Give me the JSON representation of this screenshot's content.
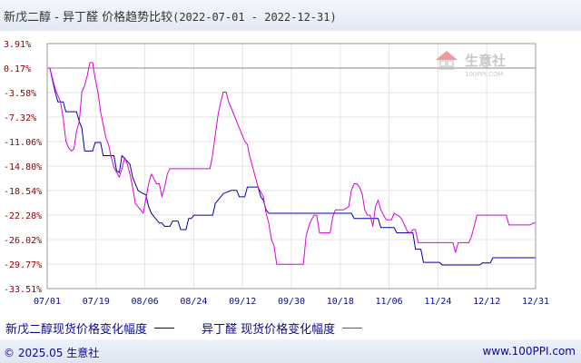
{
  "header": {
    "title": "新戊二醇 - 异丁醛  价格趋势比较",
    "range": "(2022-07-01 - 2022-12-31)"
  },
  "watermark": {
    "brand": "生意社",
    "url": "100PPI.COM",
    "icon": "house-logo-icon"
  },
  "footer": {
    "copyright": "© 2025.05 生意社",
    "site": "www.100PPI.com"
  },
  "colors": {
    "series_1": "#0000aa",
    "series_2": "#dd00dd",
    "baseline": "#888888",
    "tick_y": "#8a0000",
    "tick_x": "#0a0a8c"
  },
  "chart_data": {
    "type": "line",
    "xlabel": "",
    "ylabel": "",
    "yticks": [
      "3.91%",
      "0.17%",
      "-3.58%",
      "-7.32%",
      "-11.06%",
      "-14.80%",
      "-18.54%",
      "-22.28%",
      "-26.02%",
      "-29.77%",
      "-33.51%"
    ],
    "ylim": [
      -33.51,
      3.91
    ],
    "xticks": [
      "07/01",
      "07/19",
      "08/06",
      "08/24",
      "09/12",
      "09/30",
      "10/18",
      "11/06",
      "11/24",
      "12/12",
      "12/31"
    ],
    "xlim": [
      "07/01",
      "12/31"
    ],
    "grid": true,
    "legend_position": "bottom",
    "series": [
      {
        "name": "新戊二醇现货价格变化幅度",
        "color": "#0000aa",
        "points": [
          [
            "07/01",
            0.17
          ],
          [
            "07/02",
            0.17
          ],
          [
            "07/04",
            -3.5
          ],
          [
            "07/05",
            -5.0
          ],
          [
            "07/07",
            -5.0
          ],
          [
            "07/08",
            -6.5
          ],
          [
            "07/12",
            -6.5
          ],
          [
            "07/13",
            -8.0
          ],
          [
            "07/14",
            -9.0
          ],
          [
            "07/15",
            -12.5
          ],
          [
            "07/18",
            -12.5
          ],
          [
            "07/19",
            -11.2
          ],
          [
            "07/21",
            -11.2
          ],
          [
            "07/22",
            -13.2
          ],
          [
            "07/26",
            -13.2
          ],
          [
            "07/27",
            -15.5
          ],
          [
            "07/28",
            -15.8
          ],
          [
            "07/29",
            -13.2
          ],
          [
            "08/01",
            -14.5
          ],
          [
            "08/02",
            -16.5
          ],
          [
            "08/04",
            -18.5
          ],
          [
            "08/05",
            -18.8
          ],
          [
            "08/07",
            -19.2
          ],
          [
            "08/08",
            -21.0
          ],
          [
            "08/09",
            -22.0
          ],
          [
            "08/10",
            -22.5
          ],
          [
            "08/11",
            -23.0
          ],
          [
            "08/12",
            -23.5
          ],
          [
            "08/13",
            -23.5
          ],
          [
            "08/14",
            -24.0
          ],
          [
            "08/16",
            -24.0
          ],
          [
            "08/17",
            -23.2
          ],
          [
            "08/19",
            -23.2
          ],
          [
            "08/20",
            -24.5
          ],
          [
            "08/22",
            -24.5
          ],
          [
            "08/23",
            -22.8
          ],
          [
            "08/24",
            -22.8
          ],
          [
            "08/25",
            -22.3
          ],
          [
            "09/01",
            -22.3
          ],
          [
            "09/02",
            -20.5
          ],
          [
            "09/04",
            -19.5
          ],
          [
            "09/05",
            -19.0
          ],
          [
            "09/08",
            -18.5
          ],
          [
            "09/10",
            -18.5
          ],
          [
            "09/11",
            -19.5
          ],
          [
            "09/13",
            -19.5
          ],
          [
            "09/14",
            -18.0
          ],
          [
            "09/18",
            -18.0
          ],
          [
            "09/19",
            -19.5
          ],
          [
            "09/20",
            -20.0
          ],
          [
            "09/21",
            -21.5
          ],
          [
            "09/22",
            -22.0
          ],
          [
            "10/23",
            -22.0
          ],
          [
            "10/24",
            -22.8
          ],
          [
            "11/02",
            -22.8
          ],
          [
            "11/03",
            -24.2
          ],
          [
            "11/08",
            -24.2
          ],
          [
            "11/09",
            -25.0
          ],
          [
            "11/15",
            -25.0
          ],
          [
            "11/16",
            -27.5
          ],
          [
            "11/18",
            -27.5
          ],
          [
            "11/19",
            -29.5
          ],
          [
            "11/25",
            -29.5
          ],
          [
            "11/26",
            -29.9
          ],
          [
            "12/10",
            -29.9
          ],
          [
            "12/11",
            -29.6
          ],
          [
            "12/14",
            -29.6
          ],
          [
            "12/15",
            -28.8
          ],
          [
            "12/31",
            -28.8
          ]
        ]
      },
      {
        "name": "异丁醛 现货价格变化幅度",
        "color": "#dd00dd",
        "points": [
          [
            "07/01",
            0.17
          ],
          [
            "07/02",
            0.17
          ],
          [
            "07/04",
            -3.0
          ],
          [
            "07/06",
            -5.0
          ],
          [
            "07/07",
            -7.5
          ],
          [
            "07/08",
            -11.0
          ],
          [
            "07/09",
            -12.0
          ],
          [
            "07/10",
            -12.5
          ],
          [
            "07/11",
            -12.2
          ],
          [
            "07/12",
            -9.5
          ],
          [
            "07/13",
            -8.0
          ],
          [
            "07/14",
            -3.5
          ],
          [
            "07/15",
            -2.5
          ],
          [
            "07/16",
            -1.0
          ],
          [
            "07/17",
            1.0
          ],
          [
            "07/18",
            1.0
          ],
          [
            "07/19",
            -1.5
          ],
          [
            "07/20",
            -3.5
          ],
          [
            "07/21",
            -6.5
          ],
          [
            "07/22",
            -8.5
          ],
          [
            "07/23",
            -10.5
          ],
          [
            "07/24",
            -11.5
          ],
          [
            "07/25",
            -13.5
          ],
          [
            "07/26",
            -15.0
          ],
          [
            "07/28",
            -16.5
          ],
          [
            "07/29",
            -15.2
          ],
          [
            "07/30",
            -13.5
          ],
          [
            "07/31",
            -14.5
          ],
          [
            "08/01",
            -16.0
          ],
          [
            "08/02",
            -18.0
          ],
          [
            "08/03",
            -20.5
          ],
          [
            "08/05",
            -21.5
          ],
          [
            "08/06",
            -22.0
          ],
          [
            "08/08",
            -17.5
          ],
          [
            "08/09",
            -16.0
          ],
          [
            "08/11",
            -17.5
          ],
          [
            "08/12",
            -17.5
          ],
          [
            "08/13",
            -19.5
          ],
          [
            "08/14",
            -18.0
          ],
          [
            "08/15",
            -16.0
          ],
          [
            "08/16",
            -15.2
          ],
          [
            "08/31",
            -15.2
          ],
          [
            "09/01",
            -13.0
          ],
          [
            "09/02",
            -10.0
          ],
          [
            "09/03",
            -7.0
          ],
          [
            "09/04",
            -5.0
          ],
          [
            "09/05",
            -3.5
          ],
          [
            "09/06",
            -3.5
          ],
          [
            "09/07",
            -5.0
          ],
          [
            "09/08",
            -6.0
          ],
          [
            "09/09",
            -7.0
          ],
          [
            "09/10",
            -8.0
          ],
          [
            "09/11",
            -9.0
          ],
          [
            "09/12",
            -10.0
          ],
          [
            "09/13",
            -11.0
          ],
          [
            "09/14",
            -11.5
          ],
          [
            "09/15",
            -13.5
          ],
          [
            "09/16",
            -15.0
          ],
          [
            "09/17",
            -16.5
          ],
          [
            "09/18",
            -18.0
          ],
          [
            "09/20",
            -19.5
          ],
          [
            "09/21",
            -22.0
          ],
          [
            "09/22",
            -23.5
          ],
          [
            "09/23",
            -26.0
          ],
          [
            "09/24",
            -27.0
          ],
          [
            "09/25",
            -29.8
          ],
          [
            "10/05",
            -29.8
          ],
          [
            "10/06",
            -25.5
          ],
          [
            "10/07",
            -24.0
          ],
          [
            "10/08",
            -23.0
          ],
          [
            "10/09",
            -22.3
          ],
          [
            "10/10",
            -22.3
          ],
          [
            "10/11",
            -25.0
          ],
          [
            "10/15",
            -25.0
          ],
          [
            "10/16",
            -22.5
          ],
          [
            "10/17",
            -21.5
          ],
          [
            "10/20",
            -21.5
          ],
          [
            "10/22",
            -21.0
          ],
          [
            "10/23",
            -18.5
          ],
          [
            "10/24",
            -17.5
          ],
          [
            "10/25",
            -17.5
          ],
          [
            "10/26",
            -18.0
          ],
          [
            "10/27",
            -19.0
          ],
          [
            "10/28",
            -21.5
          ],
          [
            "10/29",
            -22.3
          ],
          [
            "10/30",
            -22.3
          ],
          [
            "10/31",
            -24.0
          ],
          [
            "11/01",
            -21.0
          ],
          [
            "11/02",
            -20.0
          ],
          [
            "11/03",
            -21.5
          ],
          [
            "11/05",
            -23.0
          ],
          [
            "11/07",
            -23.0
          ],
          [
            "11/08",
            -22.0
          ],
          [
            "11/10",
            -22.5
          ],
          [
            "11/11",
            -23.0
          ],
          [
            "11/13",
            -24.8
          ],
          [
            "11/14",
            -25.0
          ],
          [
            "11/15",
            -24.5
          ],
          [
            "11/16",
            -24.5
          ],
          [
            "11/17",
            -26.5
          ],
          [
            "11/30",
            -26.5
          ],
          [
            "12/01",
            -28.0
          ],
          [
            "12/02",
            -26.5
          ],
          [
            "12/06",
            -26.5
          ],
          [
            "12/07",
            -25.5
          ],
          [
            "12/08",
            -24.0
          ],
          [
            "12/09",
            -22.3
          ],
          [
            "12/20",
            -22.3
          ],
          [
            "12/21",
            -23.8
          ],
          [
            "12/29",
            -23.8
          ],
          [
            "12/30",
            -23.5
          ],
          [
            "12/31",
            -23.5
          ]
        ]
      }
    ]
  }
}
